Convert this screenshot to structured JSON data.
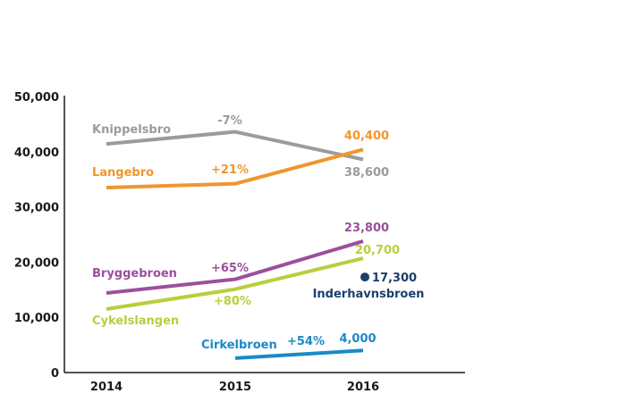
{
  "chart_data": {
    "type": "line",
    "title": "",
    "xlabel": "",
    "ylabel": "",
    "categories": [
      "2014",
      "2015",
      "2016"
    ],
    "ylim": [
      0,
      50000
    ],
    "yticks": [
      "0",
      "10,000",
      "20,000",
      "30,000",
      "40,000",
      "50,000"
    ],
    "grid": false,
    "series": [
      {
        "name": "Knippelsbro",
        "values": [
          41400,
          43600,
          38600
        ],
        "color": "#9b9b9b",
        "change_label": "-7%",
        "end_label": "38,600"
      },
      {
        "name": "Langebro",
        "values": [
          33500,
          34200,
          40400
        ],
        "color": "#f0962e",
        "change_label": "+21%",
        "end_label": "40,400"
      },
      {
        "name": "Bryggebroen",
        "values": [
          14400,
          16900,
          23800
        ],
        "color": "#9b4f9b",
        "change_label": "+65%",
        "end_label": "23,800"
      },
      {
        "name": "Cykelslangen",
        "values": [
          11500,
          15100,
          20700
        ],
        "color": "#b8cf3a",
        "change_label": "+80%",
        "end_label": "20,700"
      },
      {
        "name": "Cirkelbroen",
        "x": [
          "2015",
          "2016"
        ],
        "values": [
          2600,
          4000
        ],
        "color": "#1a8ac4",
        "change_label": "+54%",
        "end_label": "4,000"
      },
      {
        "name": "Inderhavnsbroen",
        "x": [
          "2016"
        ],
        "values": [
          17300
        ],
        "color": "#1b3f6e",
        "end_label": "17,300"
      }
    ]
  }
}
